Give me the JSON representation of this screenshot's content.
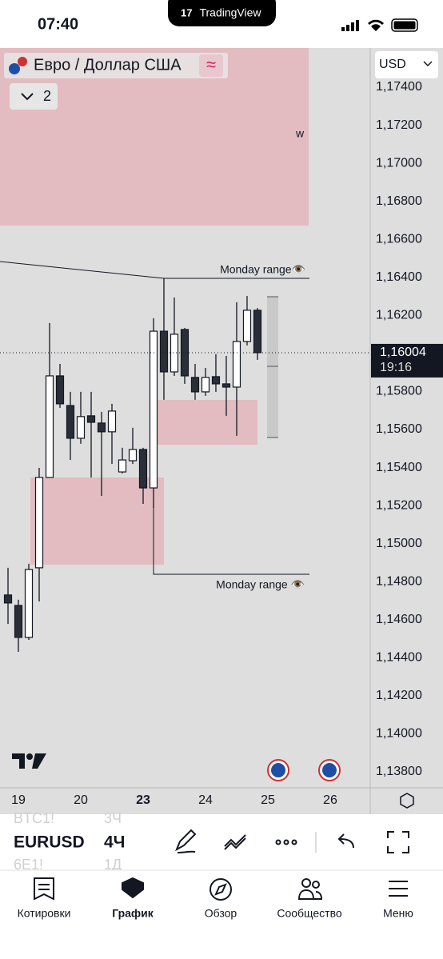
{
  "status_bar": {
    "time": "07:40",
    "app": "TradingView"
  },
  "header": {
    "symbol_name": "Евро / Доллар США",
    "indicator_count": "2",
    "currency": "USD"
  },
  "chart_data": {
    "type": "candlestick",
    "open": [
      1.1473,
      1.14675,
      1.14507,
      1.14873,
      1.15348,
      1.15882,
      1.15726,
      1.15554,
      1.15672,
      1.15634,
      1.15588,
      1.15377,
      1.15436,
      1.15495,
      1.15293,
      1.16117,
      1.15903,
      1.16126,
      1.15874,
      1.15798,
      1.15878,
      1.1584,
      1.15823,
      1.16063,
      1.16227
    ],
    "high": [
      1.14873,
      1.14705,
      1.14894,
      1.15398,
      1.1616,
      1.15945,
      1.15798,
      1.15798,
      1.15798,
      1.15693,
      1.15735,
      1.15504,
      1.15609,
      1.15504,
      1.16185,
      1.16395,
      1.16294,
      1.16134,
      1.15945,
      1.15924,
      1.15996,
      1.15987,
      1.16269,
      1.16302,
      1.16239
    ],
    "low": [
      1.14578,
      1.14431,
      1.14494,
      1.14696,
      1.15348,
      1.15714,
      1.1544,
      1.15525,
      1.15348,
      1.15251,
      1.15419,
      1.15369,
      1.15419,
      1.15209,
      1.15188,
      1.15756,
      1.15882,
      1.1584,
      1.15756,
      1.15777,
      1.15798,
      1.15672,
      1.15567,
      1.16042,
      1.15966
    ],
    "close": [
      1.14688,
      1.14507,
      1.14864,
      1.15348,
      1.15882,
      1.15735,
      1.15554,
      1.15668,
      1.15638,
      1.15588,
      1.15697,
      1.1544,
      1.15495,
      1.15293,
      1.16117,
      1.15903,
      1.16101,
      1.15882,
      1.15798,
      1.15874,
      1.1584,
      1.15823,
      1.16063,
      1.16227,
      1.16004
    ],
    "up_color": "#ffffff",
    "down_color": "#2a2e39",
    "ylim": [
      1.13716,
      1.17606
    ],
    "yticks": [
      {
        "value": 1.174,
        "label": "1,17400"
      },
      {
        "value": 1.172,
        "label": "1,17200"
      },
      {
        "value": 1.17,
        "label": "1,17000"
      },
      {
        "value": 1.168,
        "label": "1,16800"
      },
      {
        "value": 1.166,
        "label": "1,16600"
      },
      {
        "value": 1.164,
        "label": "1,16400"
      },
      {
        "value": 1.162,
        "label": "1,16200"
      },
      {
        "value": 1.16,
        "label": "1,16000"
      },
      {
        "value": 1.158,
        "label": "1,15800"
      },
      {
        "value": 1.156,
        "label": "1,15600"
      },
      {
        "value": 1.154,
        "label": "1,15400"
      },
      {
        "value": 1.152,
        "label": "1,15200"
      },
      {
        "value": 1.15,
        "label": "1,15000"
      },
      {
        "value": 1.148,
        "label": "1,14800"
      },
      {
        "value": 1.146,
        "label": "1,14600"
      },
      {
        "value": 1.144,
        "label": "1,14400"
      },
      {
        "value": 1.142,
        "label": "1,14200"
      },
      {
        "value": 1.14,
        "label": "1,14000"
      },
      {
        "value": 1.138,
        "label": "1,13800"
      }
    ],
    "xlim": [
      -0.77,
      34.85
    ],
    "xticks": [
      {
        "value": 1,
        "label": "19"
      },
      {
        "value": 7,
        "label": "20"
      },
      {
        "value": 13,
        "label": "23"
      },
      {
        "value": 19,
        "label": "24"
      },
      {
        "value": 25,
        "label": "25"
      },
      {
        "value": 31,
        "label": "26"
      }
    ],
    "grid": false,
    "price_label": "1,16004",
    "countdown": "19:16",
    "annotations": [
      "Monday range👁️",
      "Monday range 👁️",
      "w"
    ]
  },
  "toolbar": {
    "symbols": [
      "BTC1!",
      "EURUSD",
      "6E1!"
    ],
    "intervals": [
      "3Ч",
      "4Ч",
      "1Д"
    ]
  },
  "nav": [
    "Котировки",
    "График",
    "Обзор",
    "Сообщество",
    "Меню"
  ]
}
